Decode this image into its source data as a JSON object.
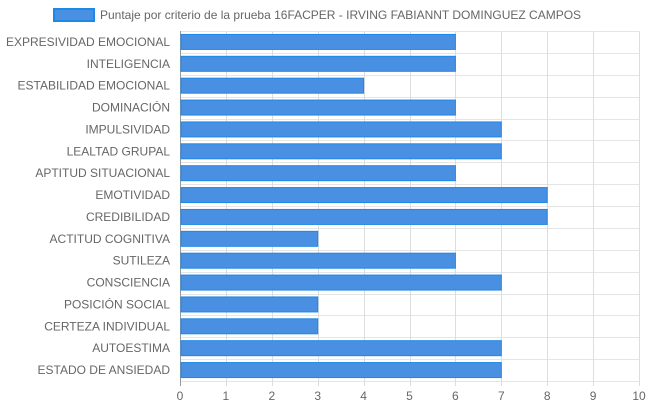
{
  "chart_data": {
    "type": "bar",
    "orientation": "horizontal",
    "categories": [
      "EXPRESIVIDAD EMOCIONAL",
      "INTELIGENCIA",
      "ESTABILIDAD EMOCIONAL",
      "DOMINACIÓN",
      "IMPULSIVIDAD",
      "LEALTAD GRUPAL",
      "APTITUD SITUACIONAL",
      "EMOTIVIDAD",
      "CREDIBILIDAD",
      "ACTITUD COGNITIVA",
      "SUTILEZA",
      "CONSCIENCIA",
      "POSICIÓN SOCIAL",
      "CERTEZA INDIVIDUAL",
      "AUTOESTIMA",
      "ESTADO DE ANSIEDAD"
    ],
    "series": [
      {
        "name": "Puntaje por criterio de la prueba 16FACPER - IRVING FABIANNT DOMINGUEZ CAMPOS",
        "values": [
          6,
          6,
          4,
          6,
          7,
          7,
          6,
          8,
          8,
          3,
          6,
          7,
          3,
          3,
          7,
          7
        ],
        "color": "#4a90e2",
        "border_color": "#1e88e5"
      }
    ],
    "xlim": [
      0,
      10
    ],
    "x_ticks": [
      0,
      1,
      2,
      3,
      4,
      5,
      6,
      7,
      8,
      9,
      10
    ],
    "grid": true,
    "legend_position": "top"
  }
}
